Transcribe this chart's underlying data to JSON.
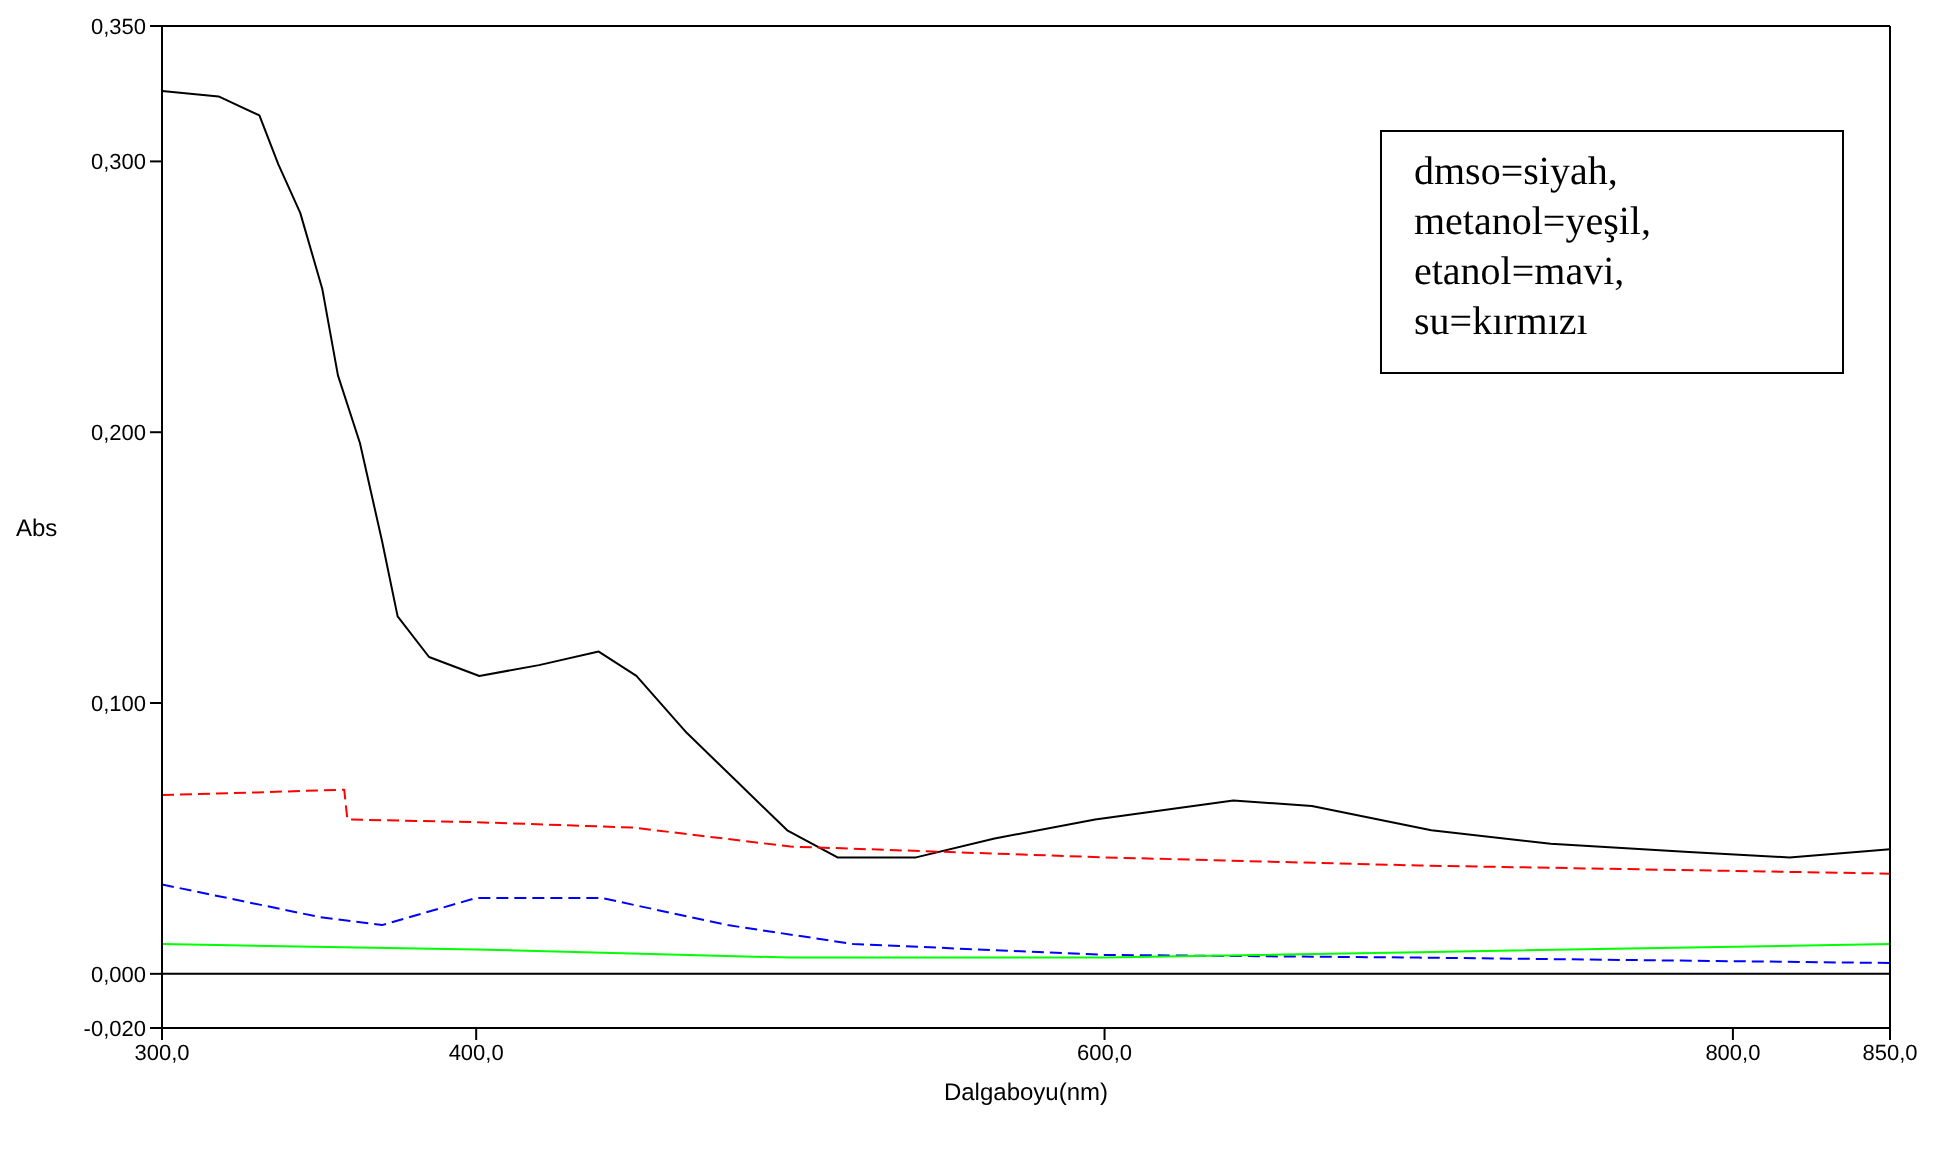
{
  "chart_data": {
    "type": "line",
    "xlabel": "Dalgaboyu(nm)",
    "ylabel": "Abs",
    "xlim": [
      300,
      850
    ],
    "ylim": [
      -0.02,
      0.35
    ],
    "xticks": [
      {
        "value": 300,
        "label": "300,0"
      },
      {
        "value": 400,
        "label": "400,0"
      },
      {
        "value": 600,
        "label": "600,0"
      },
      {
        "value": 800,
        "label": "800,0"
      },
      {
        "value": 850,
        "label": "850,0"
      }
    ],
    "yticks": [
      {
        "value": -0.02,
        "label": "-0,020"
      },
      {
        "value": 0,
        "label": "0,000"
      },
      {
        "value": 0.1,
        "label": "0,100"
      },
      {
        "value": 0.2,
        "label": "0,200"
      },
      {
        "value": 0.3,
        "label": "0,300"
      },
      {
        "value": 0.35,
        "label": "0,350"
      }
    ],
    "marker": "none",
    "ref_lines": [
      {
        "axis": "y",
        "value": 0,
        "color": "#000000",
        "line_style": "solid"
      }
    ],
    "annotations": [
      "dmso=siyah,",
      "metanol=yeşil,",
      "etanol=mavi,",
      "su=kırmızı"
    ],
    "series": [
      {
        "color": "#000000",
        "line_style": "solid",
        "x": [
          300,
          318,
          331,
          337,
          344,
          351,
          356,
          363,
          370,
          375,
          385,
          401,
          420,
          439,
          451,
          467,
          483,
          499,
          515,
          540,
          565,
          597,
          641,
          666,
          704,
          742,
          786,
          818,
          850
        ],
        "values": [
          0.326,
          0.324,
          0.317,
          0.299,
          0.281,
          0.253,
          0.221,
          0.196,
          0.16,
          0.132,
          0.117,
          0.11,
          0.114,
          0.119,
          0.11,
          0.089,
          0.071,
          0.053,
          0.043,
          0.043,
          0.05,
          0.057,
          0.064,
          0.062,
          0.053,
          0.048,
          0.045,
          0.043,
          0.046
        ]
      },
      {
        "color": "#ff0000",
        "line_style": "dashed",
        "x": [
          300,
          330,
          358,
          359,
          400,
          450,
          500,
          600,
          700,
          850
        ],
        "values": [
          0.066,
          0.067,
          0.068,
          0.057,
          0.056,
          0.054,
          0.047,
          0.043,
          0.04,
          0.037
        ]
      },
      {
        "color": "#0000ff",
        "line_style": "dashed",
        "x": [
          300,
          350,
          370,
          400,
          440,
          480,
          520,
          600,
          700,
          850
        ],
        "values": [
          0.033,
          0.021,
          0.018,
          0.028,
          0.028,
          0.018,
          0.011,
          0.007,
          0.006,
          0.004
        ]
      },
      {
        "color": "#00ff00",
        "line_style": "solid",
        "x": [
          300,
          400,
          500,
          600,
          700,
          850
        ],
        "values": [
          0.011,
          0.009,
          0.006,
          0.006,
          0.008,
          0.011
        ]
      }
    ]
  }
}
